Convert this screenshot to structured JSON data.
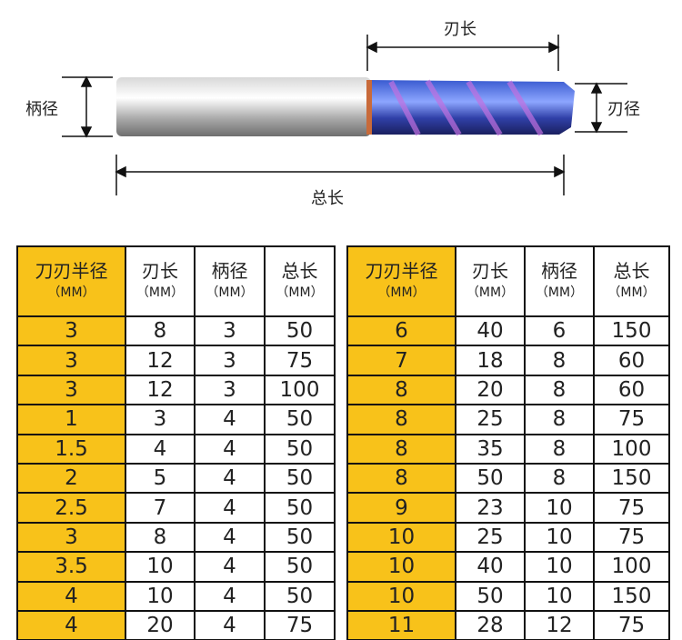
{
  "diagram": {
    "cutting_length": "刃长",
    "shank_diameter": "柄径",
    "cutting_diameter": "刃径",
    "overall_length": "总长"
  },
  "tables": [
    {
      "header": [
        {
          "name": "刀刃半径",
          "unit": "（MM）"
        },
        {
          "name": "刃长",
          "unit": "（MM）"
        },
        {
          "name": "柄径",
          "unit": "（MM）"
        },
        {
          "name": "总长",
          "unit": "（MM）"
        }
      ],
      "rows": [
        [
          3,
          8,
          3,
          50
        ],
        [
          3,
          12,
          3,
          75
        ],
        [
          3,
          12,
          3,
          100
        ],
        [
          1,
          3,
          4,
          50
        ],
        [
          1.5,
          4,
          4,
          50
        ],
        [
          2,
          5,
          4,
          50
        ],
        [
          2.5,
          7,
          4,
          50
        ],
        [
          3,
          8,
          4,
          50
        ],
        [
          3.5,
          10,
          4,
          50
        ],
        [
          4,
          10,
          4,
          50
        ],
        [
          4,
          20,
          4,
          75
        ]
      ]
    },
    {
      "header": [
        {
          "name": "刀刃半径",
          "unit": "（MM）"
        },
        {
          "name": "刃长",
          "unit": "（MM）"
        },
        {
          "name": "柄径",
          "unit": "（MM）"
        },
        {
          "name": "总长",
          "unit": "（MM）"
        }
      ],
      "rows": [
        [
          6,
          40,
          6,
          150
        ],
        [
          7,
          18,
          8,
          60
        ],
        [
          8,
          20,
          8,
          60
        ],
        [
          8,
          25,
          8,
          75
        ],
        [
          8,
          35,
          8,
          100
        ],
        [
          8,
          50,
          8,
          150
        ],
        [
          9,
          23,
          10,
          75
        ],
        [
          10,
          25,
          10,
          75
        ],
        [
          10,
          40,
          10,
          100
        ],
        [
          10,
          50,
          10,
          150
        ],
        [
          11,
          28,
          12,
          75
        ]
      ]
    }
  ]
}
